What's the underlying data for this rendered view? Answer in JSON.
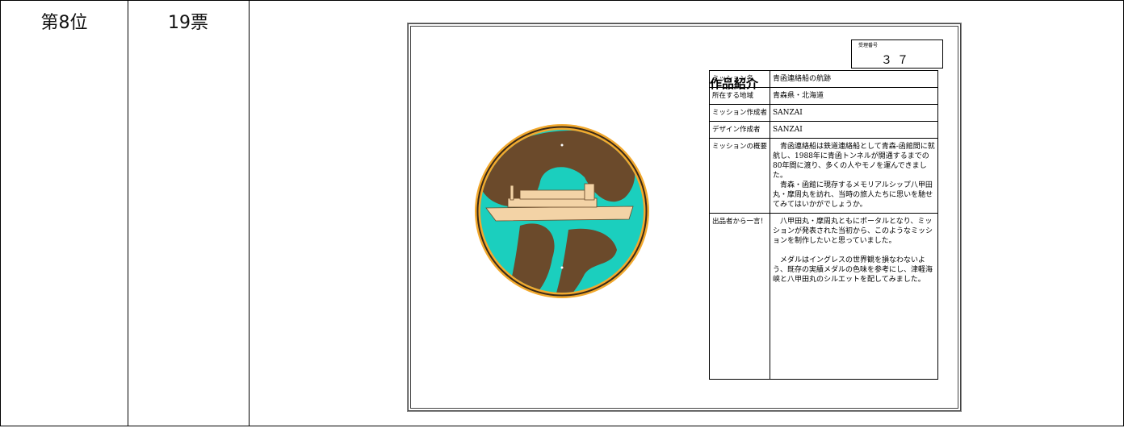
{
  "row": {
    "rank": "第8位",
    "votes": "19票"
  },
  "card": {
    "title": "作品紹介",
    "receipt_label": "受理番号",
    "receipt_number": "３７",
    "rows": [
      {
        "label": "ミッション名",
        "value": [
          "青函連絡船の航跡"
        ]
      },
      {
        "label": "所在する地域",
        "value": [
          "青森県・北海道"
        ]
      },
      {
        "label": "ミッション作成者",
        "value": [
          "SANZAI"
        ]
      },
      {
        "label": "デザイン作成者",
        "value": [
          "SANZAI"
        ]
      },
      {
        "label": "ミッションの概要",
        "value": [
          "青函連絡船は鉄道連絡船として青森-函館間に就航し、1988年に青函トンネルが開通するまでの80年間に渡り、多くの人やモノを運んできました。",
          "青森・函館に現存するメモリアルシップ八甲田丸・摩周丸を訪れ、当時の旅人たちに思いを馳せてみてはいかがでしょうか。"
        ]
      },
      {
        "label": "出品者から一言！",
        "value": [
          "八甲田丸・摩周丸ともにポータルとなり、ミッションが発表された当初から、このようなミッションを制作したいと思っていました。",
          "メダルはイングレスの世界観を損なわないよう、既存の実績メダルの色味を参考にし、津軽海峡と八甲田丸のシルエットを配してみました。"
        ]
      }
    ]
  }
}
